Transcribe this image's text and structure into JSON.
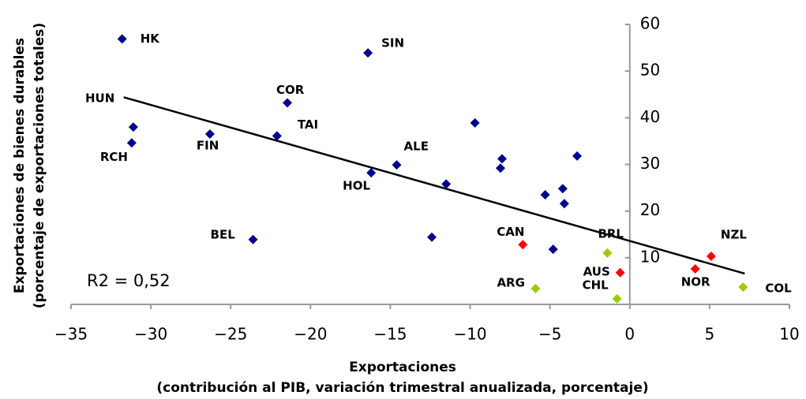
{
  "chart_data": {
    "type": "scatter",
    "xlabel": [
      "Exportaciones",
      "(contribución al PIB, variación trimestral anualizada, porcentaje)"
    ],
    "ylabel": [
      "Exportaciones de bienes durables",
      "(porcentaje de exportaciones totales)"
    ],
    "xlim": [
      -35,
      10
    ],
    "ylim": [
      0,
      60
    ],
    "xticks": [
      {
        "value": -35,
        "label": "−35"
      },
      {
        "value": -30,
        "label": "−30"
      },
      {
        "value": -25,
        "label": "−25"
      },
      {
        "value": -20,
        "label": "−20"
      },
      {
        "value": -15,
        "label": "−15"
      },
      {
        "value": -10,
        "label": "−10"
      },
      {
        "value": -5,
        "label": "−5"
      },
      0,
      5,
      10
    ],
    "yticks": [
      10,
      20,
      30,
      40,
      50,
      60
    ],
    "series": [
      {
        "color": "#00008b",
        "x": [
          -31.8,
          -16.4,
          -21.45,
          -31.1,
          -31.2,
          -26.3,
          -22.1,
          -9.7,
          -14.6,
          -8.0,
          -8.1,
          -3.3,
          -16.2,
          -11.5,
          -5.3,
          -4.2,
          -4.1,
          -23.6,
          -12.4,
          -4.8
        ],
        "values": [
          56.9,
          53.9,
          43.2,
          38.0,
          34.6,
          36.5,
          36.1,
          38.9,
          29.9,
          31.2,
          29.2,
          31.8,
          28.2,
          25.8,
          23.5,
          24.8,
          21.6,
          13.9,
          14.4,
          11.8
        ],
        "labels": [
          "HK",
          "SIN",
          "COR",
          null,
          "RCH",
          "FIN",
          "TAI",
          null,
          "ALE",
          null,
          null,
          null,
          "HOL",
          null,
          null,
          null,
          null,
          "BEL",
          null,
          null
        ]
      },
      {
        "color": "#ff0000",
        "x": [
          -6.7,
          5.1,
          4.1,
          -0.6
        ],
        "values": [
          12.8,
          10.3,
          7.6,
          6.8
        ],
        "labels": [
          "CAN",
          "NZL",
          "NOR",
          "AUS"
        ]
      },
      {
        "color": "#99cc00",
        "x": [
          -1.4,
          -5.9,
          -0.8,
          7.1
        ],
        "values": [
          11.0,
          3.4,
          1.2,
          3.7
        ],
        "labels": [
          "BRL",
          "ARG",
          "CHL",
          "COL"
        ]
      }
    ],
    "trendline": {
      "x": [
        -31.7,
        7.2
      ],
      "values": [
        44.4,
        6.6
      ]
    },
    "annotations": [
      "HUN",
      "R2 = 0,52"
    ]
  }
}
